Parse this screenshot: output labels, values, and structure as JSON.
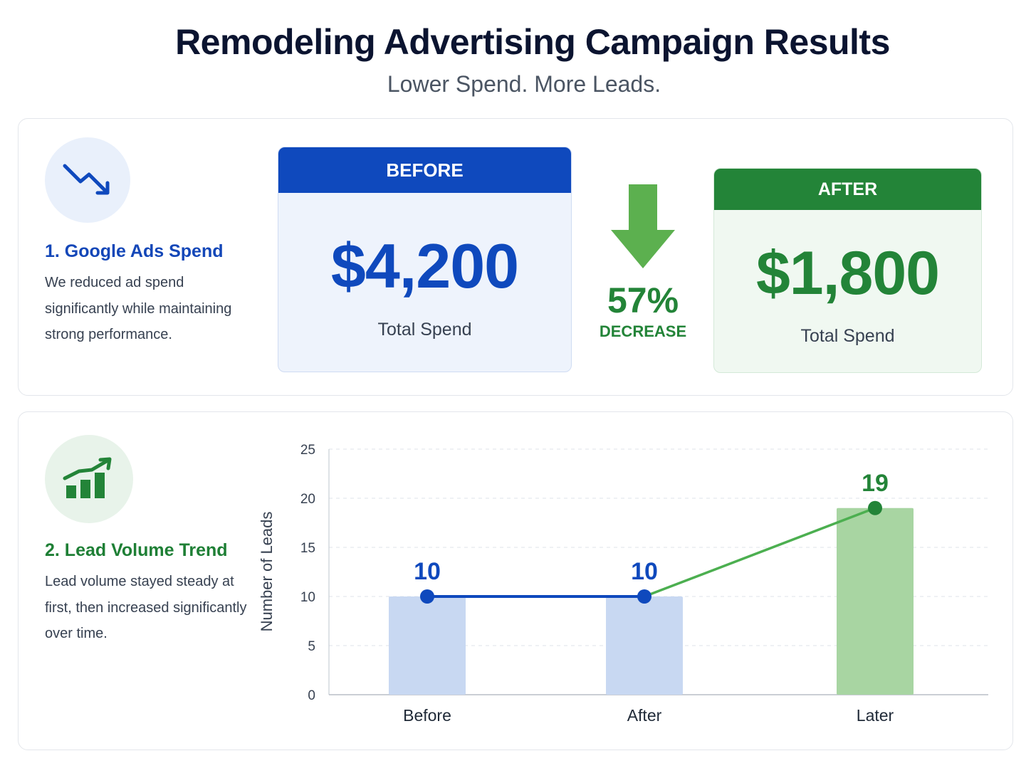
{
  "header": {
    "title": "Remodeling Advertising Campaign Results",
    "subtitle": "Lower Spend. More Leads."
  },
  "spend_section": {
    "icon": "trending-down-icon",
    "title": "1. Google Ads Spend",
    "description": "We reduced ad spend significantly while maintaining strong performance.",
    "before": {
      "label": "BEFORE",
      "value": "$4,200",
      "caption": "Total Spend"
    },
    "change": {
      "icon": "down-arrow-icon",
      "percent": "57%",
      "label": "DECREASE"
    },
    "after": {
      "label": "AFTER",
      "value": "$1,800",
      "caption": "Total Spend"
    }
  },
  "leads_section": {
    "icon": "bar-chart-growth-icon",
    "title": "2. Lead Volume Trend",
    "description": "Lead volume stayed steady at first, then increased significantly over time."
  },
  "colors": {
    "blue": "#0f49bd",
    "green": "#238438",
    "light_blue_bar": "#c8d8f2",
    "light_green_bar": "#a8d5a2",
    "line_green": "#4caf50"
  },
  "chart_data": {
    "type": "bar",
    "categories": [
      "Before",
      "After",
      "Later"
    ],
    "values": [
      10,
      10,
      19
    ],
    "data_labels": [
      "10",
      "10",
      "19"
    ],
    "ylabel": "Number of Leads",
    "xlabel": "",
    "ylim": [
      0,
      25
    ],
    "yticks": [
      0,
      5,
      10,
      15,
      20,
      25
    ],
    "overlay_line": {
      "values": [
        10,
        10,
        19
      ]
    },
    "grid": true
  }
}
